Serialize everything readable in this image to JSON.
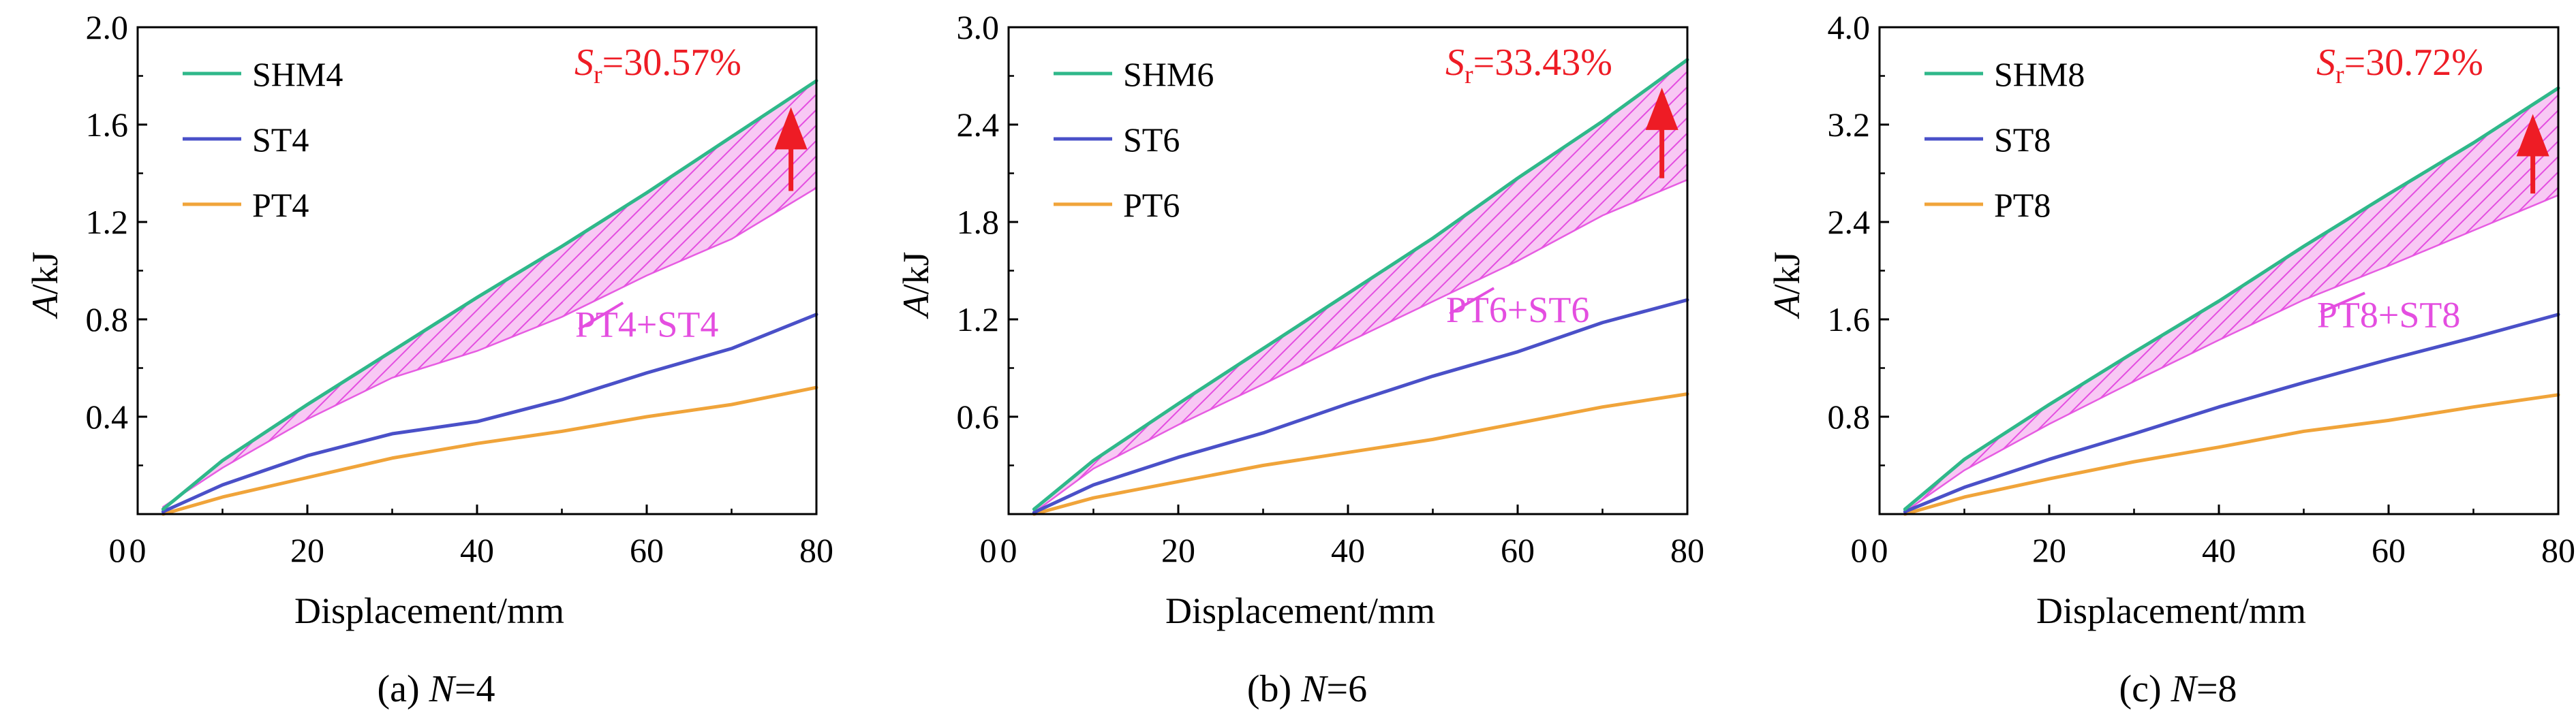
{
  "figure": {
    "panels": [
      {
        "caption_prefix": "(a) ",
        "caption_var": "N",
        "caption_value": "=4",
        "annotation_sym": "S",
        "annotation_sub": "r",
        "annotation_value": "=30.57%",
        "band_label": "PT4+ST4"
      },
      {
        "caption_prefix": "(b) ",
        "caption_var": "N",
        "caption_value": "=6",
        "annotation_sym": "S",
        "annotation_sub": "r",
        "annotation_value": "=33.43%",
        "band_label": "PT6+ST6"
      },
      {
        "caption_prefix": "(c) ",
        "caption_var": "N",
        "caption_value": "=8",
        "annotation_sym": "S",
        "annotation_sub": "r",
        "annotation_value": "=30.72%",
        "band_label": "PT8+ST8"
      }
    ]
  },
  "colors": {
    "shm": "#2fb88a",
    "st": "#4a50c8",
    "pt": "#f0a43a",
    "band": "#e44ee0",
    "annotation": "#ee1c25",
    "axis": "#000000"
  },
  "chart_data": [
    {
      "type": "line",
      "xlabel": "Displacement/mm",
      "ylabel_var": "A",
      "ylabel_unit": "/kJ",
      "xlim": [
        0,
        80
      ],
      "ylim": [
        0,
        2.0
      ],
      "xticks": [
        0,
        20,
        40,
        60,
        80
      ],
      "yticks": [
        0.4,
        0.8,
        1.2,
        1.6,
        2.0
      ],
      "ytick_labels": [
        "0.4",
        "0.8",
        "1.2",
        "1.6",
        "2.0"
      ],
      "x": [
        3,
        10,
        20,
        30,
        40,
        50,
        60,
        70,
        80
      ],
      "series": [
        {
          "name": "SHM4",
          "key": "shm",
          "values": [
            0.02,
            0.22,
            0.45,
            0.67,
            0.89,
            1.1,
            1.32,
            1.55,
            1.78
          ]
        },
        {
          "name": "ST4",
          "key": "st",
          "values": [
            0.01,
            0.12,
            0.24,
            0.33,
            0.38,
            0.47,
            0.58,
            0.68,
            0.82
          ]
        },
        {
          "name": "PT4",
          "key": "pt",
          "values": [
            0.0,
            0.07,
            0.15,
            0.23,
            0.29,
            0.34,
            0.4,
            0.45,
            0.52
          ]
        }
      ],
      "band_upper": [
        0.03,
        0.19,
        0.39,
        0.56,
        0.67,
        0.81,
        0.98,
        1.13,
        1.34
      ]
    },
    {
      "type": "line",
      "xlabel": "Displacement/mm",
      "ylabel_var": "A",
      "ylabel_unit": "/kJ",
      "xlim": [
        0,
        80
      ],
      "ylim": [
        0,
        3.0
      ],
      "xticks": [
        0,
        20,
        40,
        60,
        80
      ],
      "yticks": [
        0.6,
        1.2,
        1.8,
        2.4,
        3.0
      ],
      "ytick_labels": [
        "0.6",
        "1.2",
        "1.8",
        "2.4",
        "3.0"
      ],
      "x": [
        3,
        10,
        20,
        30,
        40,
        50,
        60,
        70,
        80
      ],
      "series": [
        {
          "name": "SHM6",
          "key": "shm",
          "values": [
            0.03,
            0.33,
            0.68,
            1.02,
            1.36,
            1.7,
            2.07,
            2.42,
            2.8
          ]
        },
        {
          "name": "ST6",
          "key": "st",
          "values": [
            0.01,
            0.18,
            0.35,
            0.5,
            0.68,
            0.85,
            1.0,
            1.18,
            1.32
          ]
        },
        {
          "name": "PT6",
          "key": "pt",
          "values": [
            0.0,
            0.1,
            0.2,
            0.3,
            0.38,
            0.46,
            0.56,
            0.66,
            0.74
          ]
        }
      ],
      "band_upper": [
        0.01,
        0.28,
        0.55,
        0.8,
        1.06,
        1.31,
        1.56,
        1.84,
        2.06
      ]
    },
    {
      "type": "line",
      "xlabel": "Displacement/mm",
      "ylabel_var": "A",
      "ylabel_unit": "/kJ",
      "xlim": [
        0,
        80
      ],
      "ylim": [
        0,
        4.0
      ],
      "xticks": [
        0,
        20,
        40,
        60,
        80
      ],
      "yticks": [
        0.8,
        1.6,
        2.4,
        3.2,
        4.0
      ],
      "ytick_labels": [
        "0.8",
        "1.6",
        "2.4",
        "3.2",
        "4.0"
      ],
      "x": [
        3,
        10,
        20,
        30,
        40,
        50,
        60,
        70,
        80
      ],
      "series": [
        {
          "name": "SHM8",
          "key": "shm",
          "values": [
            0.04,
            0.45,
            0.9,
            1.33,
            1.75,
            2.2,
            2.63,
            3.05,
            3.5
          ]
        },
        {
          "name": "ST8",
          "key": "st",
          "values": [
            0.02,
            0.22,
            0.45,
            0.66,
            0.88,
            1.08,
            1.27,
            1.45,
            1.64
          ]
        },
        {
          "name": "PT8",
          "key": "pt",
          "values": [
            0.0,
            0.14,
            0.29,
            0.43,
            0.55,
            0.68,
            0.77,
            0.88,
            0.98
          ]
        }
      ],
      "band_upper": [
        0.02,
        0.36,
        0.74,
        1.09,
        1.43,
        1.76,
        2.04,
        2.33,
        2.62
      ]
    }
  ]
}
